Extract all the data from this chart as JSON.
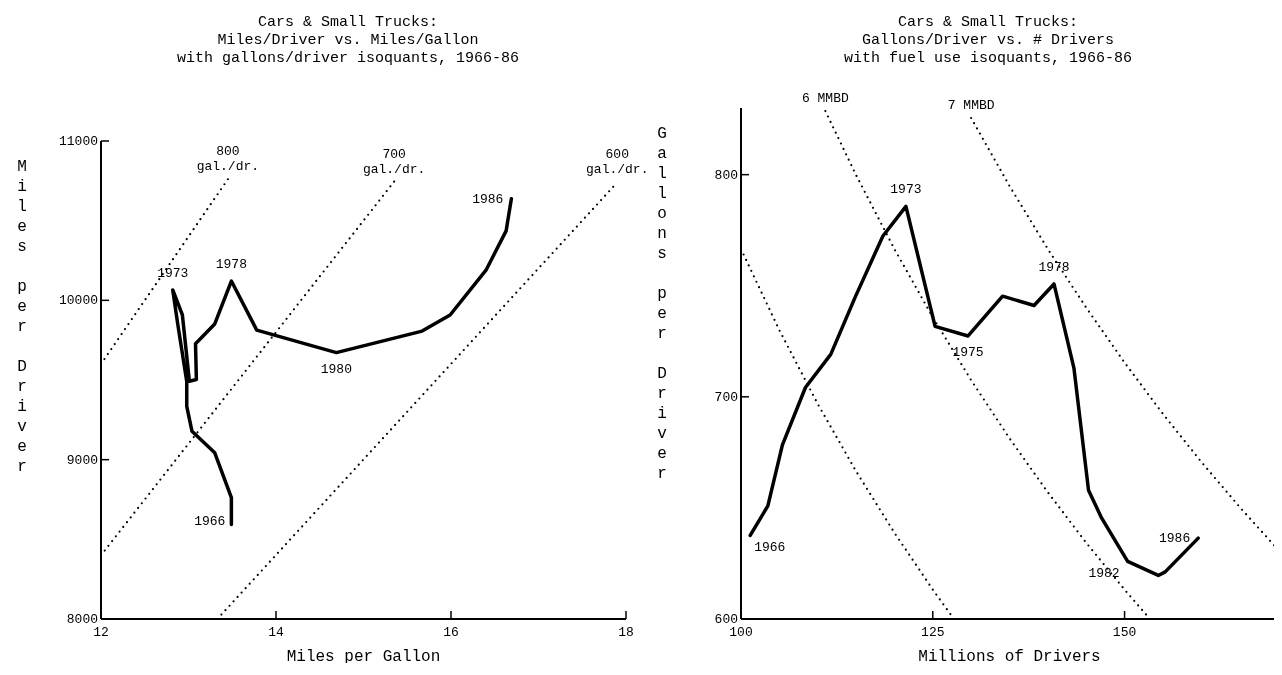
{
  "chart_data": [
    {
      "type": "line",
      "title": "Cars & Small Trucks:\nMiles/Driver vs. Miles/Gallon\nwith gallons/driver isoquants, 1966-86",
      "xlabel": "Miles per Gallon",
      "ylabel": "Miles per Driver",
      "xlim": [
        12,
        18
      ],
      "ylim": [
        8000,
        11000
      ],
      "xticks": [
        12,
        14,
        16,
        18
      ],
      "yticks": [
        8000,
        9000,
        10000,
        11000
      ],
      "grid": false,
      "marker": "none",
      "series": [
        {
          "color": "#000000",
          "line_style": "solid",
          "x": [
            13.49,
            13.49,
            13.3,
            13.04,
            12.98,
            12.98,
            12.88,
            12.82,
            12.93,
            13.01,
            13.09,
            13.08,
            13.3,
            13.49,
            13.78,
            14.69,
            15.67,
            15.99,
            16.4,
            16.63,
            16.69
          ],
          "values": [
            8593,
            8762,
            9043,
            9178,
            9335,
            9490,
            9840,
            10065,
            9908,
            9492,
            9503,
            9728,
            9852,
            10121,
            9813,
            9672,
            9807,
            9908,
            10189,
            10436,
            10638
          ]
        },
        {
          "color": "#000000",
          "line_style": "dotted",
          "x": [
            12,
            13.45
          ],
          "values": [
            9600,
            10760
          ]
        },
        {
          "color": "#000000",
          "line_style": "dotted",
          "x": [
            12,
            15.35
          ],
          "values": [
            8400,
            10745
          ]
        },
        {
          "color": "#000000",
          "line_style": "dotted",
          "x": [
            13.33,
            17.9
          ],
          "values": [
            8000,
            10740
          ]
        }
      ],
      "annotations": [
        {
          "text": "1966",
          "x": 13.49,
          "y": 8593
        },
        {
          "text": "1973",
          "x": 12.82,
          "y": 10065
        },
        {
          "text": "1978",
          "x": 13.49,
          "y": 10121
        },
        {
          "text": "1980",
          "x": 14.69,
          "y": 9672
        },
        {
          "text": "1986",
          "x": 16.69,
          "y": 10638
        },
        {
          "text": "800\ngal./dr.",
          "x": 13.45,
          "y": 10760
        },
        {
          "text": "700\ngal./dr.",
          "x": 15.35,
          "y": 10745
        },
        {
          "text": "600\ngal./dr.",
          "x": 17.9,
          "y": 10740
        }
      ]
    },
    {
      "type": "line",
      "title": "Cars & Small Trucks:\nGallons/Driver vs. # Drivers\nwith fuel use isoquants, 1966-86",
      "xlabel": "Millions of Drivers",
      "ylabel": "Gallons per Driver",
      "xlim": [
        100,
        170
      ],
      "ylim": [
        600,
        830
      ],
      "xticks": [
        100,
        125,
        150
      ],
      "yticks": [
        600,
        700,
        800
      ],
      "grid": false,
      "marker": "none",
      "series": [
        {
          "color": "#000000",
          "line_style": "solid",
          "x": [
            101.2,
            103.5,
            105.4,
            108.4,
            111.7,
            114.9,
            118.5,
            121.5,
            125.3,
            129.6,
            134.1,
            138.2,
            140.8,
            143.4,
            145.3,
            147,
            150.4,
            154.4,
            155.3,
            159.6
          ],
          "values": [
            637.6,
            650.9,
            678.4,
            704.2,
            719.1,
            745,
            772.4,
            785.7,
            731.7,
            727.4,
            745.3,
            741.1,
            750.8,
            712.9,
            658,
            645.5,
            625.9,
            619.6,
            621.2,
            636.4
          ]
        },
        {
          "color": "#000000",
          "line_style": "dotted",
          "x": [
            100,
            105,
            110,
            115,
            120,
            125,
            127.75
          ],
          "values": [
            766.5,
            730,
            696.8,
            666.5,
            638.8,
            613.2,
            600
          ]
        },
        {
          "color": "#000000",
          "line_style": "dotted",
          "x": [
            111,
            115,
            120,
            125,
            130,
            135,
            140,
            145,
            150,
            153.3
          ],
          "values": [
            828.6,
            799.8,
            766.5,
            735.8,
            707.5,
            681.3,
            657,
            634.3,
            613.2,
            600
          ]
        },
        {
          "color": "#000000",
          "line_style": "dotted",
          "x": [
            130,
            135,
            140,
            145,
            150,
            155,
            160,
            165,
            170
          ],
          "values": [
            825.5,
            794.9,
            766.5,
            740.1,
            715.4,
            692.3,
            670.7,
            650.4,
            631.2
          ]
        }
      ],
      "annotations": [
        {
          "text": "6 MMBD",
          "x": 111,
          "y": 828.6
        },
        {
          "text": "7 MMBD",
          "x": 130,
          "y": 825.5
        },
        {
          "text": "1966",
          "x": 101.2,
          "y": 637.6
        },
        {
          "text": "1973",
          "x": 121.5,
          "y": 785.7
        },
        {
          "text": "1975",
          "x": 129.6,
          "y": 727.4
        },
        {
          "text": "1978",
          "x": 140.8,
          "y": 750.8
        },
        {
          "text": "1982",
          "x": 150.4,
          "y": 625.9
        },
        {
          "text": "1986",
          "x": 159.6,
          "y": 636.4
        }
      ]
    }
  ]
}
